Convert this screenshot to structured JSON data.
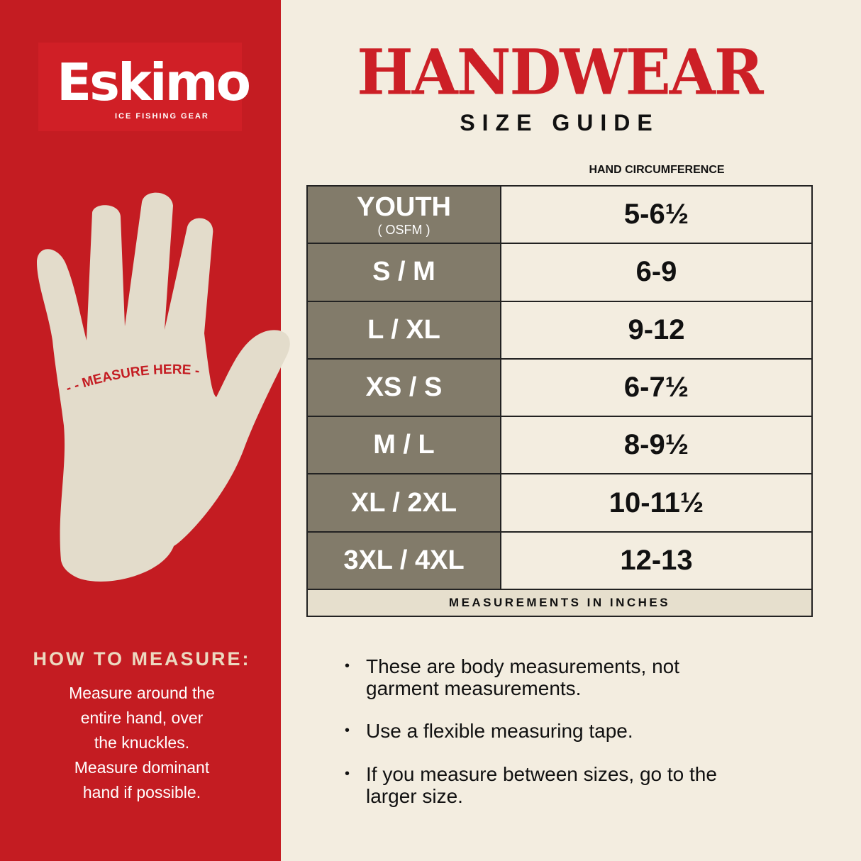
{
  "brand": {
    "name": "Eskimo",
    "tagline": "ICE FISHING GEAR",
    "color": "#d01f26"
  },
  "title": "HANDWEAR",
  "subtitle": "SIZE GUIDE",
  "hand_label": "MEASURE HERE",
  "how_to": {
    "title": "HOW TO MEASURE:",
    "lines": [
      "Measure around the",
      "entire hand, over",
      "the knuckles.",
      "Measure dominant",
      "hand if possible."
    ]
  },
  "table": {
    "column_header": "HAND CIRCUMFERENCE",
    "rows": [
      {
        "size": "YOUTH",
        "note": "( OSFM )",
        "measure": "5-6½"
      },
      {
        "size": "S / M",
        "measure": "6-9"
      },
      {
        "size": "L / XL",
        "measure": "9-12"
      },
      {
        "size": "XS / S",
        "measure": "6-7½"
      },
      {
        "size": "M / L",
        "measure": "8-9½"
      },
      {
        "size": "XL / 2XL",
        "measure": "10-11½"
      },
      {
        "size": "3XL / 4XL",
        "measure": "12-13"
      }
    ],
    "footer": "MEASUREMENTS IN INCHES"
  },
  "notes": [
    "These are body measurements, not garment measurements.",
    "Use a flexible measuring tape.",
    "If you measure between sizes, go to the larger size."
  ],
  "colors": {
    "left_panel": "#c41c22",
    "background": "#f3ede0",
    "size_cell": "#827b6a",
    "title": "#cc1f26"
  }
}
